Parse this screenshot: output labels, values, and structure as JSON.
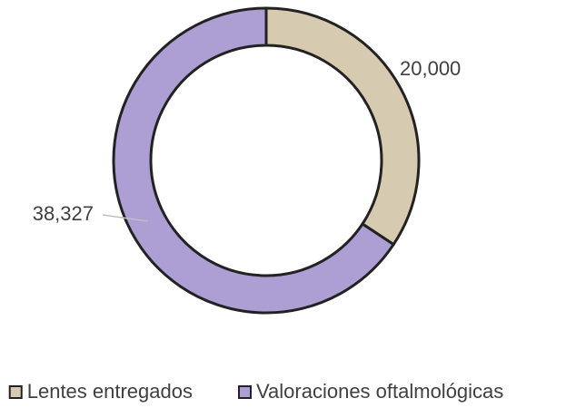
{
  "chart_data": {
    "type": "donut",
    "categories": [
      "Lentes entregados",
      "Valoraciones oftalmológicas"
    ],
    "values": [
      20000,
      38327
    ],
    "value_labels": [
      "20,000",
      "38,327"
    ],
    "colors": [
      "#d6cbb0",
      "#ad9fd4"
    ],
    "legend": "bottom"
  }
}
